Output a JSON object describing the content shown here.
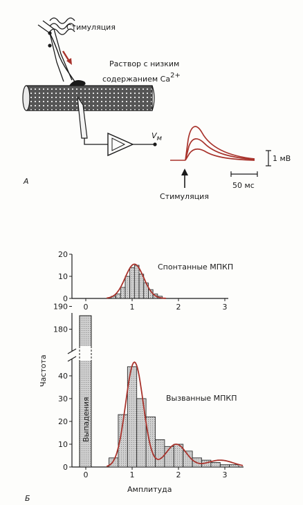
{
  "panel_a": {
    "panel_letter": "А",
    "stimulation_label": "Стимуляция",
    "solution_line1": "Раствор с низким",
    "solution_line2": "содержанием Ca",
    "solution_sup": "2+",
    "vm_symbol": "V",
    "vm_sub": "м",
    "scale_voltage": "1 мВ",
    "scale_time": "50 мс",
    "arrow_label": "Стимуляция"
  },
  "panel_b": {
    "panel_letter": "Б",
    "ylabel": "Частота",
    "xlabel": "Амплитуда",
    "failures_label": "Выпадения",
    "spontaneous_label": "Спонтанные МПКП",
    "evoked_label": "Вызванные МПКП"
  },
  "chart_data": [
    {
      "type": "bar",
      "title": "Спонтанные МПКП",
      "x": [
        0.6,
        0.7,
        0.8,
        0.9,
        1.0,
        1.1,
        1.2,
        1.3,
        1.4,
        1.5,
        1.6
      ],
      "values": [
        1,
        2,
        5,
        10,
        14,
        15,
        11,
        7,
        4,
        2,
        1
      ],
      "fit_curve": true,
      "xlim": [
        -0.2,
        3.3
      ],
      "ylim": [
        0,
        20
      ],
      "yticks": [
        0,
        10,
        20
      ],
      "xticks": [
        0,
        1,
        2,
        3
      ]
    },
    {
      "type": "bar",
      "title": "Вызванные МПКП",
      "xlabel": "Амплитуда",
      "ylabel": "Частота",
      "failures_value": 188,
      "x": [
        0.6,
        0.8,
        1.0,
        1.2,
        1.4,
        1.6,
        1.8,
        2.0,
        2.2,
        2.4,
        2.6,
        2.8,
        3.0,
        3.2
      ],
      "values": [
        4,
        23,
        44,
        30,
        22,
        12,
        9,
        10,
        7,
        4,
        3,
        2,
        1,
        1
      ],
      "fit_curve": true,
      "xlim": [
        -0.2,
        3.4
      ],
      "ylim": [
        0,
        190
      ],
      "y_axis_break": [
        50,
        175
      ],
      "yticks": [
        0,
        10,
        20,
        30,
        40,
        180,
        190
      ],
      "xticks": [
        0,
        1,
        2,
        3
      ]
    }
  ],
  "colors": {
    "trace": "#a8322b",
    "bar_fill": "#c9c9c9",
    "ink": "#1a1a1a"
  }
}
